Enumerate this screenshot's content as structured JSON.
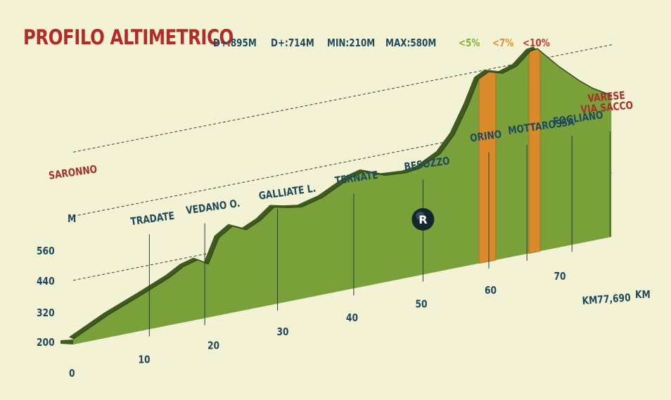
{
  "title": "PROFILO ALTIMETRICO",
  "stats": [
    "D+:895M",
    "D+:714M",
    "MIN:210M",
    "MAX:580M"
  ],
  "gradient_legend": [
    {
      "label": "<5%",
      "color": "#7fb23a"
    },
    {
      "label": "<7%",
      "color": "#e8902a"
    },
    {
      "label": "<10%",
      "color": "#c0392b"
    }
  ],
  "colors": {
    "background": "#f3f2d4",
    "terrain": "#7aa03a",
    "terrain_dark": "#3f5a1f",
    "steep": "#d98a2b",
    "title": "#b52a25",
    "text": "#1f4a5c"
  },
  "chart_data": {
    "type": "area",
    "x_unit": "KM",
    "y_unit": "M",
    "y_label": "M",
    "y_ticks": [
      200,
      320,
      440,
      560
    ],
    "x_ticks": [
      0,
      10,
      20,
      30,
      40,
      50,
      60,
      70
    ],
    "end_label": "KM77,690",
    "x_label": "KM",
    "xlim": [
      0,
      77.69
    ],
    "ylim": [
      200,
      620
    ],
    "profile": [
      [
        0,
        210
      ],
      [
        5,
        242
      ],
      [
        10,
        268
      ],
      [
        14,
        290
      ],
      [
        16,
        305
      ],
      [
        18,
        312
      ],
      [
        19.5,
        300
      ],
      [
        21,
        345
      ],
      [
        23,
        362
      ],
      [
        25,
        350
      ],
      [
        27,
        362
      ],
      [
        29,
        382
      ],
      [
        31,
        376
      ],
      [
        33,
        372
      ],
      [
        36,
        382
      ],
      [
        40,
        408
      ],
      [
        42,
        415
      ],
      [
        45,
        400
      ],
      [
        48,
        397
      ],
      [
        50,
        400
      ],
      [
        53,
        420
      ],
      [
        55,
        450
      ],
      [
        57,
        500
      ],
      [
        58.5,
        545
      ],
      [
        60,
        555
      ],
      [
        62,
        547
      ],
      [
        64,
        555
      ],
      [
        66,
        578
      ],
      [
        67,
        580
      ],
      [
        70,
        540
      ],
      [
        73,
        505
      ],
      [
        75,
        485
      ],
      [
        77.69,
        465
      ]
    ],
    "steep_segments": [
      [
        58.6,
        61
      ],
      [
        65.8,
        67.4
      ]
    ],
    "places": [
      {
        "name": "SARONNO",
        "km": 0,
        "red": true
      },
      {
        "name": "TRADATE",
        "km": 11
      },
      {
        "name": "VEDANO O.",
        "km": 19
      },
      {
        "name": "GALLIATE L.",
        "km": 29.5
      },
      {
        "name": "TERNATE",
        "km": 40.5
      },
      {
        "name": "BESOZZO",
        "km": 50.5
      },
      {
        "name": "ORINO",
        "km": 60
      },
      {
        "name": "MOTTAROSSA",
        "km": 65.5
      },
      {
        "name": "FOGLIANO",
        "km": 72
      }
    ],
    "finish_label": [
      "VARESE",
      "VIA SACCO"
    ],
    "refreshment": {
      "label": "R",
      "km": 50.5
    }
  }
}
